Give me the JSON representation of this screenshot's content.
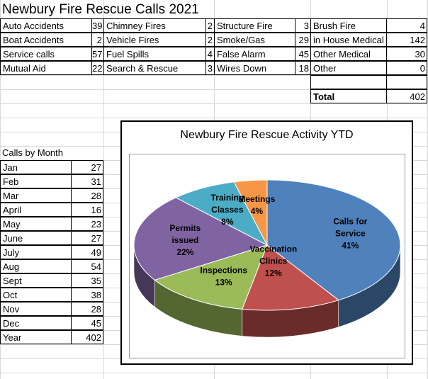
{
  "sheet_title": "Newbury Fire Rescue Calls 2021",
  "call_types": [
    [
      {
        "label": "Auto Accidents",
        "value": "39"
      },
      {
        "label": "Chimney Fires",
        "value": "2"
      },
      {
        "label": "Structure Fire",
        "value": "3"
      },
      {
        "label": "Brush Fire",
        "value": "4"
      }
    ],
    [
      {
        "label": "Boat Accidents",
        "value": "2"
      },
      {
        "label": "Vehicle Fires",
        "value": "2"
      },
      {
        "label": "Smoke/Gas",
        "value": "29"
      },
      {
        "label": "in House Medical",
        "value": "142"
      }
    ],
    [
      {
        "label": "Service calls",
        "value": "57"
      },
      {
        "label": "Fuel Spills",
        "value": "4"
      },
      {
        "label": "False Alarm",
        "value": "45"
      },
      {
        "label": "Other Medical",
        "value": "30"
      }
    ],
    [
      {
        "label": "Mutual Aid",
        "value": "22"
      },
      {
        "label": "Search & Rescue",
        "value": "3"
      },
      {
        "label": "Wires Down",
        "value": "18"
      },
      {
        "label": "Other",
        "value": "0"
      }
    ]
  ],
  "total": {
    "label": "Total",
    "value": "402"
  },
  "calls_by_month": {
    "header": "Calls by Month",
    "rows": [
      {
        "month": "Jan",
        "value": "27"
      },
      {
        "month": "Feb",
        "value": "31"
      },
      {
        "month": "Mar",
        "value": "28"
      },
      {
        "month": "April",
        "value": "16"
      },
      {
        "month": "May",
        "value": "23"
      },
      {
        "month": "June",
        "value": "27"
      },
      {
        "month": "July",
        "value": "49"
      },
      {
        "month": "Aug",
        "value": "54"
      },
      {
        "month": "Sept",
        "value": "35"
      },
      {
        "month": "Oct",
        "value": "38"
      },
      {
        "month": "Nov",
        "value": "28"
      },
      {
        "month": "Dec",
        "value": "45"
      },
      {
        "month": "Year",
        "value": "402"
      }
    ]
  },
  "chart_data": {
    "type": "pie",
    "title": "Newbury Fire Rescue Activity YTD",
    "slices": [
      {
        "name": "Calls for Service",
        "percent": 41,
        "label_lines": [
          "Calls for",
          "Service",
          "41%"
        ],
        "color": "#4f81bd"
      },
      {
        "name": "Vaccination Clinics",
        "percent": 12,
        "label_lines": [
          "Vaccination",
          "Clinics",
          "12%"
        ],
        "color": "#c0504d"
      },
      {
        "name": "Inspections",
        "percent": 13,
        "label_lines": [
          "Inspections",
          "13%"
        ],
        "color": "#9bbb59"
      },
      {
        "name": "Permits issued",
        "percent": 22,
        "label_lines": [
          "Permits",
          "issued",
          "22%"
        ],
        "color": "#8064a2"
      },
      {
        "name": "Training Classes",
        "percent": 8,
        "label_lines": [
          "Training",
          "Classes",
          "8%"
        ],
        "color": "#4bacc6"
      },
      {
        "name": "Meetings",
        "percent": 4,
        "label_lines": [
          "Meetings",
          "4%"
        ],
        "color": "#f79646"
      }
    ]
  }
}
